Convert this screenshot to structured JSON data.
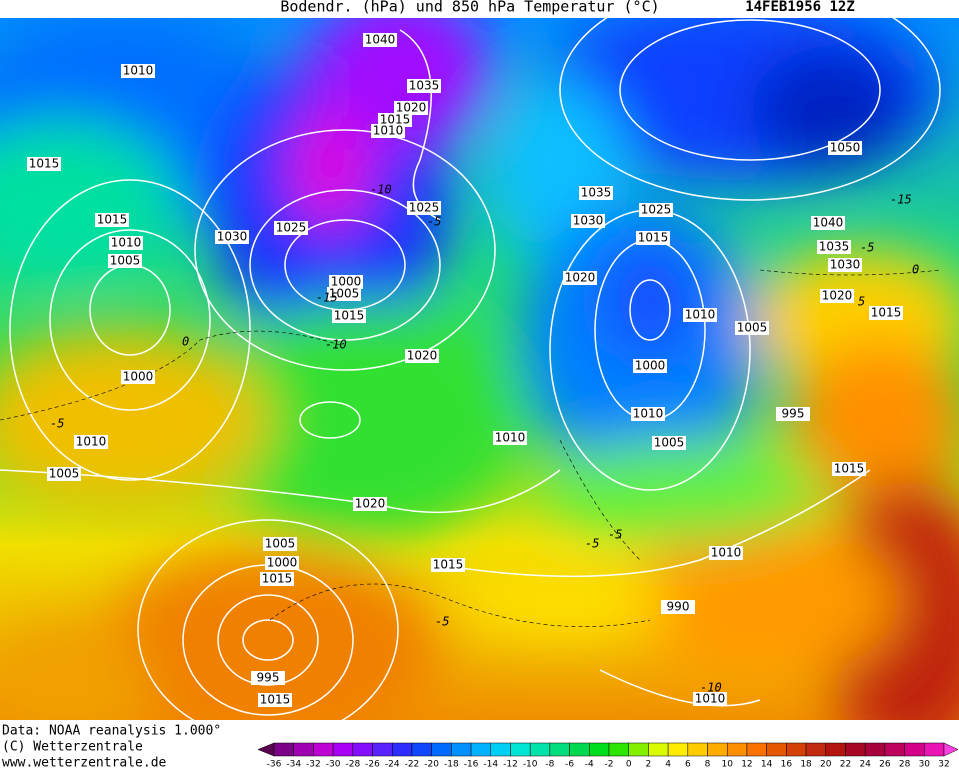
{
  "header": {
    "title": "Bodendr. (hPa) und 850 hPa Temperatur (°C)",
    "date": "14FEB1956 12Z"
  },
  "footer": {
    "source": "Data: NOAA reanalysis 1.000°",
    "copyright": "(C) Wetterzentrale",
    "url": "www.wetterzentrale.de"
  },
  "colorbar": {
    "labels": [
      -36,
      -34,
      -32,
      -30,
      -28,
      -26,
      -24,
      -22,
      -20,
      -18,
      -16,
      -14,
      -12,
      -10,
      -8,
      -6,
      -4,
      -2,
      0,
      2,
      4,
      6,
      8,
      10,
      12,
      14,
      16,
      18,
      20,
      22,
      24,
      26,
      28,
      30,
      32
    ]
  },
  "isobar_labels": [
    "1040",
    "1010",
    "1035",
    "1020",
    "1015",
    "1010",
    "1015",
    "1050",
    "1015",
    "1030",
    "1025",
    "1035",
    "1025",
    "1030",
    "1025",
    "1015",
    "1040",
    "1010",
    "1035",
    "1005",
    "1030",
    "1000",
    "1005",
    "1020",
    "1015",
    "1020",
    "1015",
    "1010",
    "1000",
    "1020",
    "1005",
    "1000",
    "1010",
    "1010",
    "995",
    "1005",
    "1015",
    "1010",
    "1005",
    "1020",
    "1010",
    "1005",
    "1000",
    "1015",
    "1015",
    "990",
    "995",
    "1015",
    "1010"
  ],
  "contour_labels": [
    "-10",
    "-5",
    "-15",
    "-10",
    "-5",
    "0",
    "-5",
    "-5",
    "-10",
    "-5",
    "-15",
    "0",
    "5",
    "-5"
  ]
}
